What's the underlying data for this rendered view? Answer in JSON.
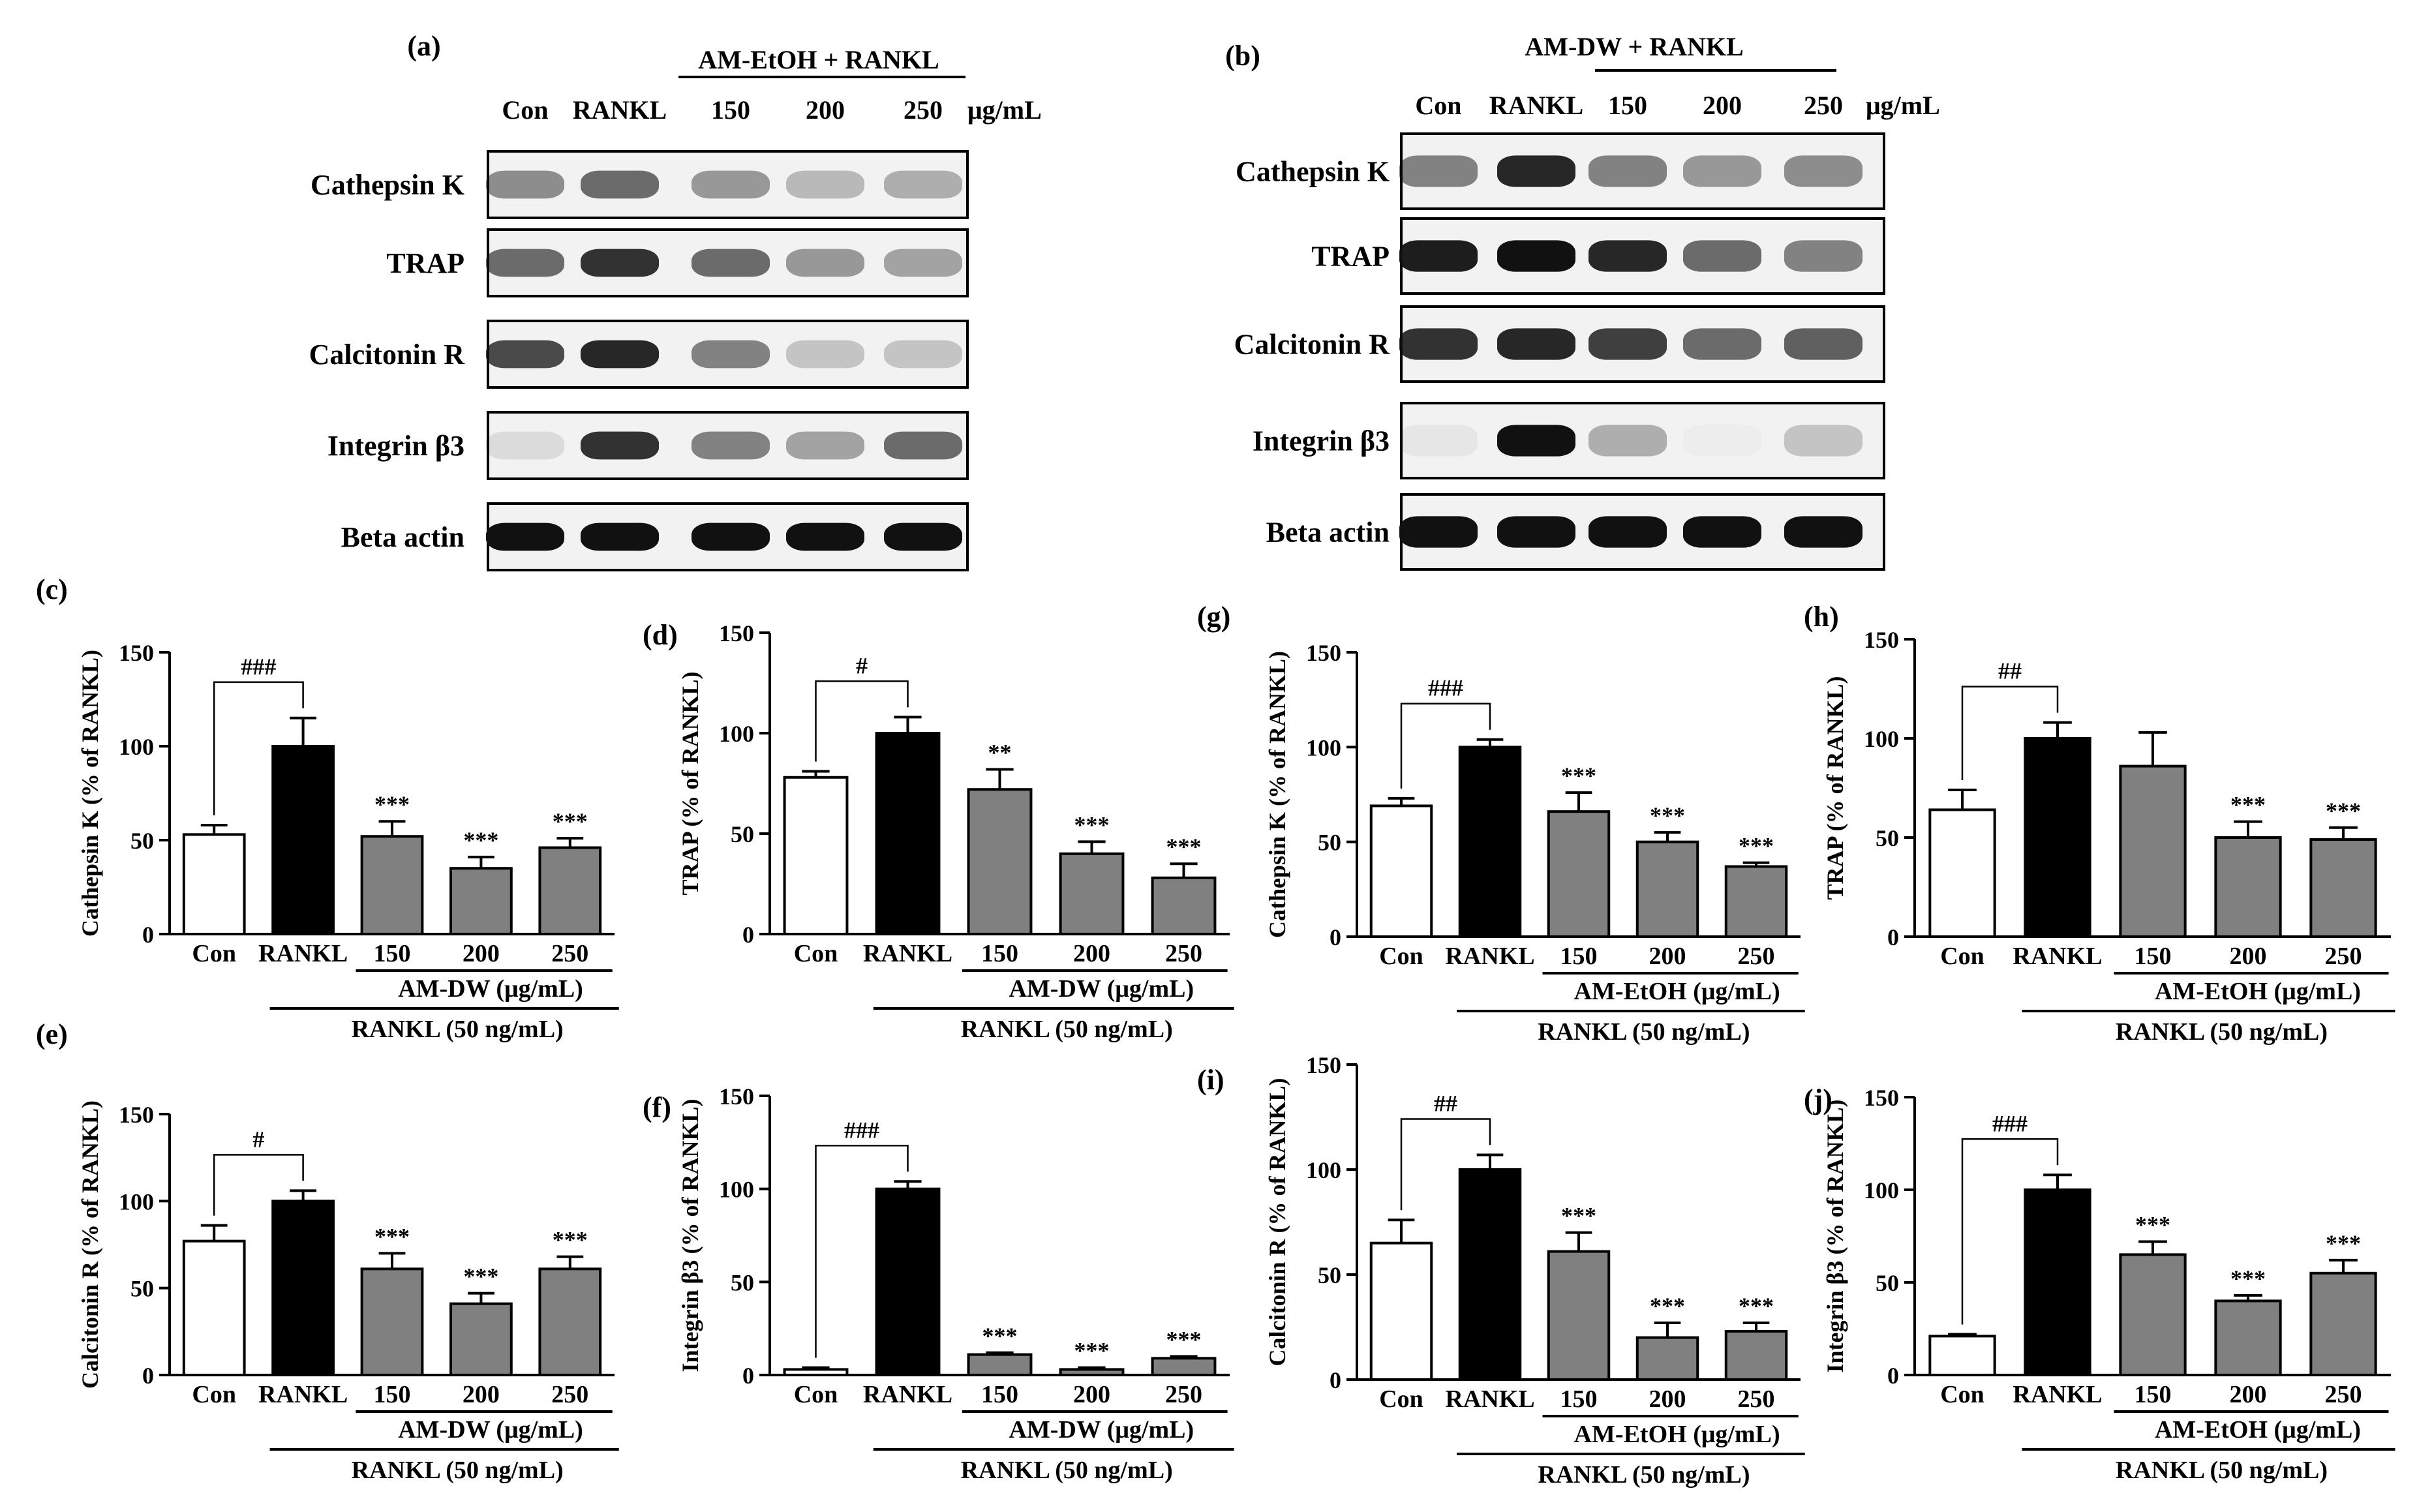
{
  "blots": [
    {
      "id": "a",
      "panel_label": "(a)",
      "treatment_label": "AM-EtOH + RANKL",
      "lanes": [
        "Con",
        "RANKL",
        "150",
        "200",
        "250"
      ],
      "unit": "μg/mL",
      "rows": [
        {
          "label": "Cathepsin K",
          "intensity": [
            0.45,
            0.6,
            0.4,
            0.25,
            0.3
          ]
        },
        {
          "label": "TRAP",
          "intensity": [
            0.6,
            0.85,
            0.6,
            0.4,
            0.35
          ]
        },
        {
          "label": "Calcitonin R",
          "intensity": [
            0.75,
            0.9,
            0.5,
            0.2,
            0.2
          ]
        },
        {
          "label": "Integrin β3",
          "intensity": [
            0.1,
            0.85,
            0.5,
            0.35,
            0.6
          ]
        },
        {
          "label": "Beta actin",
          "intensity": [
            1,
            1,
            1,
            1,
            1
          ]
        }
      ]
    },
    {
      "id": "b",
      "panel_label": "(b)",
      "treatment_label": "AM-DW + RANKL",
      "lanes": [
        "Con",
        "RANKL",
        "150",
        "200",
        "250"
      ],
      "unit": "μg/mL",
      "rows": [
        {
          "label": "Cathepsin K",
          "intensity": [
            0.5,
            0.9,
            0.5,
            0.4,
            0.45
          ]
        },
        {
          "label": "TRAP",
          "intensity": [
            0.95,
            1,
            0.9,
            0.6,
            0.5
          ]
        },
        {
          "label": "Calcitonin R",
          "intensity": [
            0.85,
            0.9,
            0.8,
            0.6,
            0.65
          ]
        },
        {
          "label": "Integrin β3",
          "intensity": [
            0.05,
            1,
            0.3,
            0.02,
            0.2
          ]
        },
        {
          "label": "Beta actin",
          "intensity": [
            1,
            1,
            1,
            1,
            1
          ]
        }
      ]
    }
  ],
  "chart_data": [
    {
      "panel": "(c)",
      "type": "bar",
      "ylabel": "Cathepsin K (% of RANKL)",
      "categories": [
        "Con",
        "RANKL",
        "150",
        "200",
        "250"
      ],
      "values": [
        53,
        100,
        52,
        35,
        46
      ],
      "errors": [
        5,
        15,
        8,
        6,
        5
      ],
      "significance": [
        "",
        "",
        "***",
        "***",
        "***"
      ],
      "bracket_label": "###",
      "ylim": [
        0,
        150
      ],
      "yticks": [
        0,
        50,
        100,
        150
      ],
      "treatment_label": "AM-DW (μg/mL)",
      "rankl_label": "RANKL (50 ng/mL)"
    },
    {
      "panel": "(d)",
      "type": "bar",
      "ylabel": "TRAP (% of RANKL)",
      "categories": [
        "Con",
        "RANKL",
        "150",
        "200",
        "250"
      ],
      "values": [
        78,
        100,
        72,
        40,
        28
      ],
      "errors": [
        3,
        8,
        10,
        6,
        7
      ],
      "significance": [
        "",
        "",
        "**",
        "***",
        "***"
      ],
      "bracket_label": "#",
      "ylim": [
        0,
        150
      ],
      "yticks": [
        0,
        50,
        100,
        150
      ],
      "treatment_label": "AM-DW (μg/mL)",
      "rankl_label": "RANKL (50 ng/mL)"
    },
    {
      "panel": "(e)",
      "type": "bar",
      "ylabel": "Calcitonin R (% of RANKL)",
      "categories": [
        "Con",
        "RANKL",
        "150",
        "200",
        "250"
      ],
      "values": [
        77,
        100,
        61,
        41,
        61
      ],
      "errors": [
        9,
        6,
        9,
        6,
        7
      ],
      "significance": [
        "",
        "",
        "***",
        "***",
        "***"
      ],
      "bracket_label": "#",
      "ylim": [
        0,
        150
      ],
      "yticks": [
        0,
        50,
        100,
        150
      ],
      "treatment_label": "AM-DW (μg/mL)",
      "rankl_label": "RANKL (50 ng/mL)"
    },
    {
      "panel": "(f)",
      "type": "bar",
      "ylabel": "Integrin β3 (% of RANKL)",
      "categories": [
        "Con",
        "RANKL",
        "150",
        "200",
        "250"
      ],
      "values": [
        3,
        100,
        11,
        3,
        9
      ],
      "errors": [
        1,
        4,
        1,
        1,
        1
      ],
      "significance": [
        "",
        "",
        "***",
        "***",
        "***"
      ],
      "bracket_label": "###",
      "ylim": [
        0,
        150
      ],
      "yticks": [
        0,
        50,
        100,
        150
      ],
      "treatment_label": "AM-DW (μg/mL)",
      "rankl_label": "RANKL (50 ng/mL)"
    },
    {
      "panel": "(g)",
      "type": "bar",
      "ylabel": "Cathepsin K (% of RANKL)",
      "categories": [
        "Con",
        "RANKL",
        "150",
        "200",
        "250"
      ],
      "values": [
        69,
        100,
        66,
        50,
        37
      ],
      "errors": [
        4,
        4,
        10,
        5,
        2
      ],
      "significance": [
        "",
        "",
        "***",
        "***",
        "***"
      ],
      "bracket_label": "###",
      "ylim": [
        0,
        150
      ],
      "yticks": [
        0,
        50,
        100,
        150
      ],
      "treatment_label": "AM-EtOH (μg/mL)",
      "rankl_label": "RANKL (50 ng/mL)"
    },
    {
      "panel": "(h)",
      "type": "bar",
      "ylabel": "TRAP (% of RANKL)",
      "categories": [
        "Con",
        "RANKL",
        "150",
        "200",
        "250"
      ],
      "values": [
        64,
        100,
        86,
        50,
        49
      ],
      "errors": [
        10,
        8,
        17,
        8,
        6
      ],
      "significance": [
        "",
        "",
        "",
        "***",
        "***"
      ],
      "bracket_label": "##",
      "ylim": [
        0,
        150
      ],
      "yticks": [
        0,
        50,
        100,
        150
      ],
      "treatment_label": "AM-EtOH (μg/mL)",
      "rankl_label": "RANKL (50 ng/mL)"
    },
    {
      "panel": "(i)",
      "type": "bar",
      "ylabel": "Calcitonin R (% of RANKL)",
      "categories": [
        "Con",
        "RANKL",
        "150",
        "200",
        "250"
      ],
      "values": [
        65,
        100,
        61,
        20,
        23
      ],
      "errors": [
        11,
        7,
        9,
        7,
        4
      ],
      "significance": [
        "",
        "",
        "***",
        "***",
        "***"
      ],
      "bracket_label": "##",
      "ylim": [
        0,
        150
      ],
      "yticks": [
        0,
        50,
        100,
        150
      ],
      "treatment_label": "AM-EtOH (μg/mL)",
      "rankl_label": "RANKL (50 ng/mL)"
    },
    {
      "panel": "(j)",
      "type": "bar",
      "ylabel": "Integrin β3 (% of RANKL)",
      "categories": [
        "Con",
        "RANKL",
        "150",
        "200",
        "250"
      ],
      "values": [
        21,
        100,
        65,
        40,
        55
      ],
      "errors": [
        1,
        8,
        7,
        3,
        7
      ],
      "significance": [
        "",
        "",
        "***",
        "***",
        "***"
      ],
      "bracket_label": "###",
      "ylim": [
        0,
        150
      ],
      "yticks": [
        0,
        50,
        100,
        150
      ],
      "treatment_label": "AM-EtOH (μg/mL)",
      "rankl_label": "RANKL (50 ng/mL)"
    }
  ],
  "colors": {
    "con": "#ffffff",
    "rankl": "#000000",
    "treatment": "#808080",
    "blot_bg": "#f2f2f2",
    "band": "#111111"
  }
}
